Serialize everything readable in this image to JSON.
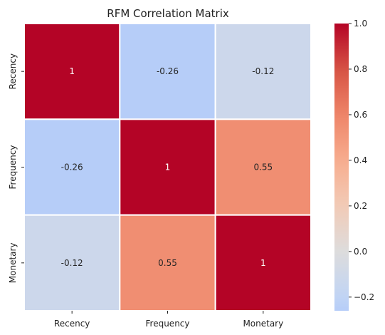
{
  "chart_data": {
    "type": "heatmap",
    "title": "RFM Correlation Matrix",
    "x_categories": [
      "Recency",
      "Frequency",
      "Monetary"
    ],
    "y_categories": [
      "Recency",
      "Frequency",
      "Monetary"
    ],
    "values": [
      [
        1,
        -0.26,
        -0.12
      ],
      [
        -0.26,
        1,
        0.55
      ],
      [
        -0.12,
        0.55,
        1
      ]
    ],
    "cell_labels": [
      [
        "1",
        "-0.26",
        "-0.12"
      ],
      [
        "-0.26",
        "1",
        "0.55"
      ],
      [
        "-0.12",
        "0.55",
        "1"
      ]
    ],
    "colorbar": {
      "vmin": -0.26,
      "vmax": 1.0,
      "center": 0,
      "ticks": [
        1.0,
        0.8,
        0.6,
        0.4,
        0.2,
        0.0,
        -0.2
      ],
      "tick_labels": [
        "1.0",
        "0.8",
        "0.6",
        "0.4",
        "0.2",
        "0.0",
        "−0.2"
      ]
    },
    "colormap": "coolwarm",
    "colors": {
      "negative_end": "#3b4cc0",
      "neutral": "#dddddd",
      "positive_end": "#b40426",
      "grid_line": "#ffffff",
      "dark_text": "#262626",
      "light_text": "#ffffff"
    },
    "grid": false,
    "legend": "colorbar-right"
  }
}
